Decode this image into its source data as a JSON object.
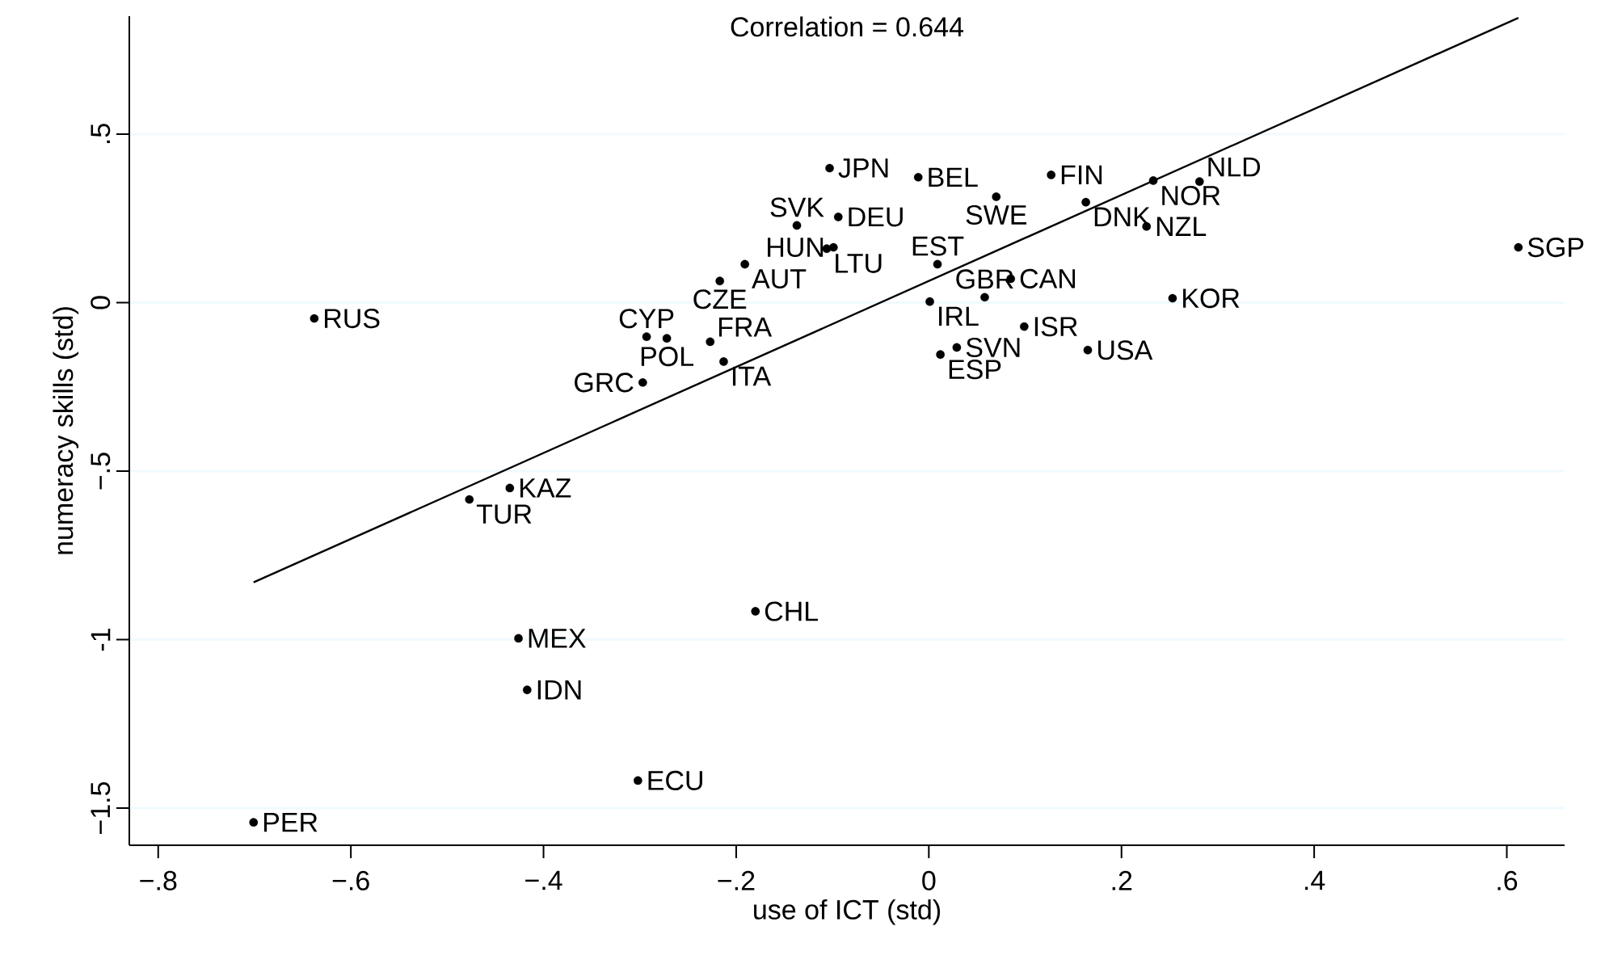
{
  "chart_data": {
    "type": "scatter",
    "title": "Correlation = 0.644",
    "xlabel": "use of ICT (std)",
    "ylabel": "numeracy skills (std)",
    "xlim": [
      -0.83,
      0.66
    ],
    "ylim": [
      -1.61,
      0.85
    ],
    "xticks": [
      {
        "value": -0.8,
        "label": "−.8"
      },
      {
        "value": -0.6,
        "label": "−.6"
      },
      {
        "value": -0.4,
        "label": "−.4"
      },
      {
        "value": -0.2,
        "label": "−.2"
      },
      0,
      {
        "value": 0.2,
        "label": ".2"
      },
      {
        "value": 0.4,
        "label": ".4"
      },
      {
        "value": 0.6,
        "label": ".6"
      }
    ],
    "yticks": [
      {
        "value": -1.5,
        "label": "−1.5"
      },
      -1,
      {
        "value": -0.5,
        "label": "−.5"
      },
      0,
      {
        "value": 0.5,
        "label": ".5"
      }
    ],
    "grid": "y",
    "series": [
      {
        "type": "scatter",
        "color": "#000000",
        "marker": "circle",
        "x": [
          -0.103,
          -0.011,
          0.127,
          0.233,
          0.281,
          0.07,
          0.163,
          0.226,
          -0.137,
          -0.094,
          -0.106,
          -0.099,
          -0.191,
          -0.217,
          0.009,
          0.085,
          0.001,
          0.058,
          0.253,
          0.099,
          0.165,
          0.029,
          0.012,
          -0.293,
          -0.272,
          -0.227,
          -0.213,
          -0.297,
          -0.638,
          -0.477,
          -0.435,
          -0.426,
          -0.417,
          -0.18,
          -0.302,
          -0.701,
          0.612
        ],
        "values": [
          0.399,
          0.372,
          0.379,
          0.362,
          0.359,
          0.314,
          0.298,
          0.226,
          0.229,
          0.254,
          0.16,
          0.164,
          0.114,
          0.064,
          0.114,
          0.071,
          0.003,
          0.016,
          0.013,
          -0.071,
          -0.141,
          -0.133,
          -0.154,
          -0.101,
          -0.106,
          -0.116,
          -0.175,
          -0.237,
          -0.047,
          -0.584,
          -0.55,
          -0.996,
          -1.149,
          -0.916,
          -1.418,
          -1.542,
          0.164
        ]
      },
      {
        "type": "line",
        "color": "#000000",
        "marker": "none",
        "x": [
          -0.701,
          0.612
        ],
        "values": [
          -0.83,
          0.845
        ]
      }
    ],
    "annotations": [
      {
        "text": "JPN",
        "x": -0.103,
        "y": 0.399
      },
      {
        "text": "BEL",
        "x": -0.011,
        "y": 0.372
      },
      {
        "text": "FIN",
        "x": 0.127,
        "y": 0.379
      },
      {
        "text": "NOR",
        "x": 0.233,
        "y": 0.362
      },
      {
        "text": "NLD",
        "x": 0.281,
        "y": 0.359
      },
      {
        "text": "SWE",
        "x": 0.07,
        "y": 0.314
      },
      {
        "text": "DNK",
        "x": 0.163,
        "y": 0.298
      },
      {
        "text": "NZL",
        "x": 0.226,
        "y": 0.226
      },
      {
        "text": "SVK",
        "x": -0.137,
        "y": 0.229
      },
      {
        "text": "DEU",
        "x": -0.094,
        "y": 0.254
      },
      {
        "text": "LTU",
        "x": -0.106,
        "y": 0.16
      },
      {
        "text": "HUN",
        "x": -0.099,
        "y": 0.164
      },
      {
        "text": "AUT",
        "x": -0.191,
        "y": 0.114
      },
      {
        "text": "CZE",
        "x": -0.217,
        "y": 0.064
      },
      {
        "text": "EST",
        "x": 0.009,
        "y": 0.114
      },
      {
        "text": "CAN",
        "x": 0.085,
        "y": 0.071
      },
      {
        "text": "IRL",
        "x": 0.001,
        "y": 0.003
      },
      {
        "text": "GBR",
        "x": 0.058,
        "y": 0.016
      },
      {
        "text": "KOR",
        "x": 0.253,
        "y": 0.013
      },
      {
        "text": "ISR",
        "x": 0.099,
        "y": -0.071
      },
      {
        "text": "USA",
        "x": 0.165,
        "y": -0.141
      },
      {
        "text": "SVN",
        "x": 0.029,
        "y": -0.133
      },
      {
        "text": "ESP",
        "x": 0.012,
        "y": -0.154
      },
      {
        "text": "CYP",
        "x": -0.293,
        "y": -0.101
      },
      {
        "text": "POL",
        "x": -0.272,
        "y": -0.106
      },
      {
        "text": "FRA",
        "x": -0.227,
        "y": -0.116
      },
      {
        "text": "ITA",
        "x": -0.213,
        "y": -0.175
      },
      {
        "text": "GRC",
        "x": -0.297,
        "y": -0.237
      },
      {
        "text": "RUS",
        "x": -0.638,
        "y": -0.047
      },
      {
        "text": "TUR",
        "x": -0.477,
        "y": -0.584
      },
      {
        "text": "KAZ",
        "x": -0.435,
        "y": -0.55
      },
      {
        "text": "MEX",
        "x": -0.426,
        "y": -0.996
      },
      {
        "text": "IDN",
        "x": -0.417,
        "y": -1.149
      },
      {
        "text": "CHL",
        "x": -0.18,
        "y": -0.916
      },
      {
        "text": "ECU",
        "x": -0.302,
        "y": -1.418
      },
      {
        "text": "PER",
        "x": -0.701,
        "y": -1.542
      },
      {
        "text": "SGP",
        "x": 0.612,
        "y": 0.164
      }
    ]
  }
}
